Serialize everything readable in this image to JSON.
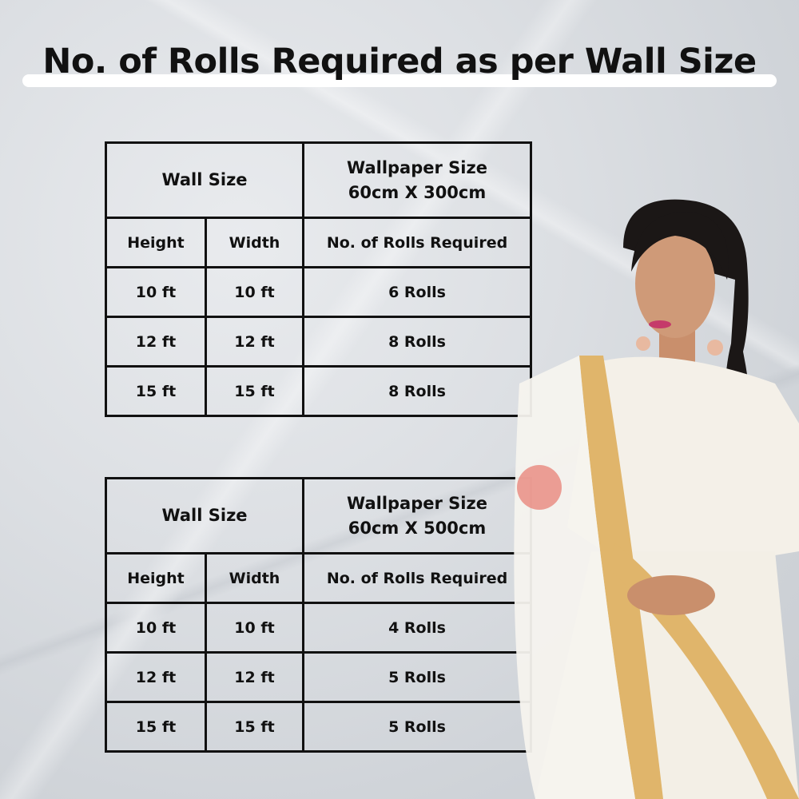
{
  "title": "No. of Rolls Required as per Wall Size",
  "tables": [
    {
      "wall_size_label": "Wall Size",
      "wallpaper_label": "Wallpaper Size",
      "wallpaper_size": "60cm X 300cm",
      "headers": {
        "height": "Height",
        "width": "Width",
        "rolls": "No. of Rolls Required"
      },
      "rows": [
        {
          "height": "10 ft",
          "width": "10 ft",
          "rolls": "6 Rolls"
        },
        {
          "height": "12 ft",
          "width": "12 ft",
          "rolls": "8 Rolls"
        },
        {
          "height": "15 ft",
          "width": "15 ft",
          "rolls": "8 Rolls"
        }
      ]
    },
    {
      "wall_size_label": "Wall Size",
      "wallpaper_label": "Wallpaper Size",
      "wallpaper_size": "60cm X 500cm",
      "headers": {
        "height": "Height",
        "width": "Width",
        "rolls": "No. of Rolls Required"
      },
      "rows": [
        {
          "height": "10 ft",
          "width": "10 ft",
          "rolls": "4 Rolls"
        },
        {
          "height": "12 ft",
          "width": "12 ft",
          "rolls": "5 Rolls"
        },
        {
          "height": "15 ft",
          "width": "15 ft",
          "rolls": "5 Rolls"
        }
      ]
    }
  ]
}
